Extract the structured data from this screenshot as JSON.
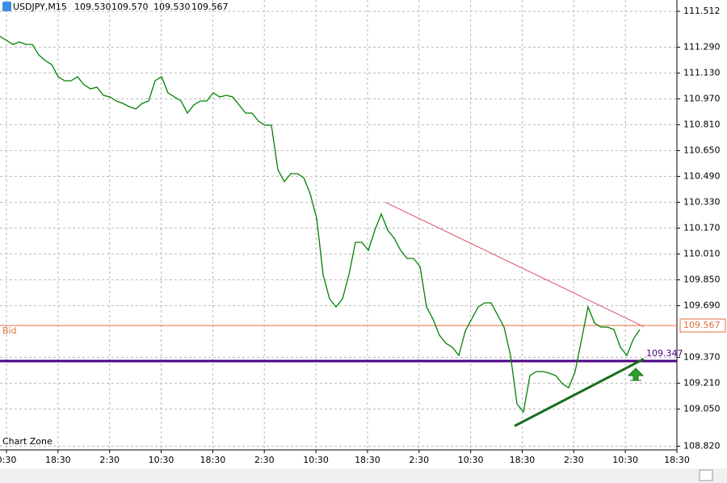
{
  "header": {
    "symbol": "USDJPY,M15",
    "ohlc": [
      "109.530",
      "109.570",
      "109.530",
      "109.567"
    ]
  },
  "chart_data": {
    "type": "line",
    "title": "Chart Zone",
    "color": "#008000",
    "values": [
      111.357,
      111.332,
      111.307,
      111.322,
      111.307,
      111.307,
      111.242,
      111.207,
      111.182,
      111.107,
      111.082,
      111.082,
      111.107,
      111.057,
      111.032,
      111.042,
      110.992,
      110.982,
      110.957,
      110.942,
      110.922,
      110.907,
      110.942,
      110.957,
      111.082,
      111.107,
      111.007,
      110.982,
      110.957,
      110.882,
      110.932,
      110.957,
      110.957,
      111.007,
      110.982,
      110.992,
      110.982,
      110.932,
      110.882,
      110.882,
      110.832,
      110.807,
      110.807,
      110.532,
      110.457,
      110.507,
      110.507,
      110.482,
      110.382,
      110.232,
      109.882,
      109.732,
      109.682,
      109.732,
      109.882,
      110.082,
      110.082,
      110.032,
      110.157,
      110.257,
      110.157,
      110.107,
      110.032,
      109.982,
      109.982,
      109.932,
      109.682,
      109.607,
      109.507,
      109.457,
      109.432,
      109.382,
      109.532,
      109.607,
      109.682,
      109.707,
      109.707,
      109.632,
      109.557,
      109.382,
      109.082,
      109.032,
      109.257,
      109.282,
      109.282,
      109.272,
      109.257,
      109.207,
      109.182,
      109.282,
      109.482,
      109.682,
      109.582,
      109.557,
      109.557,
      109.542,
      109.432,
      109.382,
      109.482,
      109.542
    ],
    "xticks": [
      "0:30",
      "18:30",
      "2:30",
      "10:30",
      "18:30",
      "2:30",
      "10:30",
      "18:30",
      "2:30",
      "10:30",
      "18:30",
      "2:30",
      "10:30",
      "18:30"
    ],
    "ylim": [
      108.797,
      111.582
    ],
    "yticks": [
      111.512,
      {
        "value": 111.29,
        "label": "111.290"
      },
      {
        "value": 111.13,
        "label": "111.130"
      },
      {
        "value": 110.97,
        "label": "110.970"
      },
      {
        "value": 110.81,
        "label": "110.810"
      },
      {
        "value": 110.65,
        "label": "110.650"
      },
      {
        "value": 110.49,
        "label": "110.490"
      },
      {
        "value": 110.33,
        "label": "110.330"
      },
      {
        "value": 110.17,
        "label": "110.170"
      },
      {
        "value": 110.01,
        "label": "110.010"
      },
      {
        "value": 109.85,
        "label": "109.850"
      },
      {
        "value": 109.69,
        "label": "109.690"
      },
      {
        "value": 109.37,
        "label": "109.370"
      },
      {
        "value": 109.21,
        "label": "109.210"
      },
      {
        "value": 109.05,
        "label": "109.050"
      },
      {
        "value": 108.82,
        "label": "108.820"
      }
    ],
    "grid": true,
    "bid": {
      "name": "Bid",
      "value": 109.567,
      "color": "#e07040"
    },
    "level": {
      "value": 109.347,
      "color": "#4b0082"
    },
    "resistance": {
      "values": [
        110.33,
        109.56
      ],
      "color": "#e0506a"
    },
    "support": {
      "values": [
        108.945,
        109.36
      ],
      "color": "#1a6e1a"
    }
  }
}
